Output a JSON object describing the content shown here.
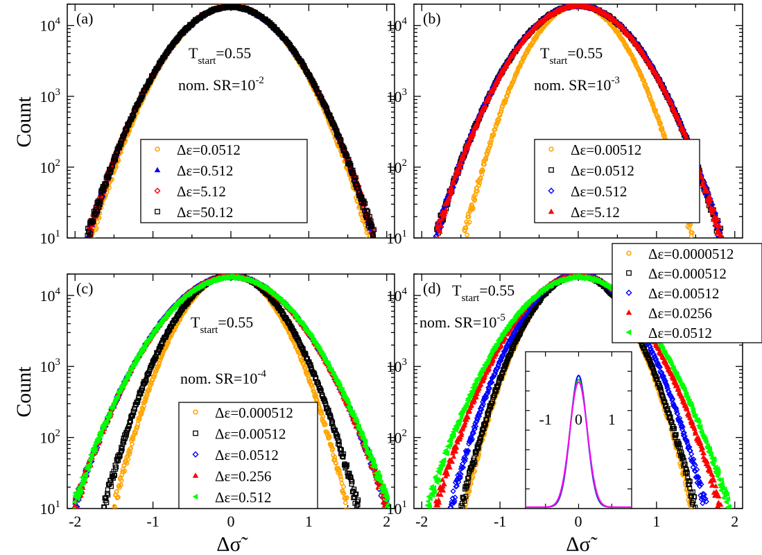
{
  "figure": {
    "ylabel": "Count",
    "xlabel": "Δσ̃"
  },
  "chart_data": [
    {
      "type": "scatter",
      "panel": "(a)",
      "annotation": {
        "T_label": "T",
        "T_sub": "start",
        "T_value": "=0.55",
        "SR_prefix": "nom. SR=10",
        "SR_exp": "-2"
      },
      "x_range": [
        -2.1,
        2.1
      ],
      "y_range": [
        10,
        20000
      ],
      "y_scale": "log",
      "xticks": [
        -2,
        -1,
        0,
        1,
        2
      ],
      "xtick_labels_shown": false,
      "yticks": [
        "10^1",
        "10^2",
        "10^3",
        "10^4"
      ],
      "legend_position": "center-right",
      "series": [
        {
          "name": "Δε=0.0512",
          "color": "#ffa500",
          "marker": "circle",
          "peak": 19000,
          "sigma": 0.46,
          "x_min": -1.85,
          "x_max": 1.88
        },
        {
          "name": "Δε=0.512",
          "color": "#0000ff",
          "marker": "triangle-up",
          "peak": 18500,
          "sigma": 0.475,
          "x_min": -1.88,
          "x_max": 1.95
        },
        {
          "name": "Δε=5.12",
          "color": "#ff0000",
          "marker": "diamond",
          "peak": 18500,
          "sigma": 0.475,
          "x_min": -1.88,
          "x_max": 1.95
        },
        {
          "name": "Δε=50.12",
          "color": "#000000",
          "marker": "square",
          "peak": 18500,
          "sigma": 0.475,
          "x_min": -1.92,
          "x_max": 1.95
        }
      ]
    },
    {
      "type": "scatter",
      "panel": "(b)",
      "annotation": {
        "T_label": "T",
        "T_sub": "start",
        "T_value": "=0.55",
        "SR_prefix": "nom. SR=10",
        "SR_exp": "-3"
      },
      "x_range": [
        -2.1,
        2.1
      ],
      "y_range": [
        10,
        20000
      ],
      "y_scale": "log",
      "xticks": [
        -2,
        -1,
        0,
        1,
        2
      ],
      "xtick_labels_shown": false,
      "yticks": [
        "10^1",
        "10^2",
        "10^3",
        "10^4"
      ],
      "legend_position": "center-right",
      "series": [
        {
          "name": "Δε=0.00512",
          "color": "#ffa500",
          "marker": "circle",
          "peak": 19500,
          "sigma": 0.375,
          "x_min": -1.62,
          "x_max": 1.65
        },
        {
          "name": "Δε=0.0512",
          "color": "#000000",
          "marker": "square",
          "peak": 19000,
          "sigma": 0.47,
          "x_min": -1.9,
          "x_max": 1.92
        },
        {
          "name": "Δε=0.512",
          "color": "#0000ff",
          "marker": "diamond",
          "peak": 19000,
          "sigma": 0.47,
          "x_min": -1.9,
          "x_max": 1.92
        },
        {
          "name": "Δε=5.12",
          "color": "#ff0000",
          "marker": "triangle-up",
          "peak": 19000,
          "sigma": 0.47,
          "x_min": -1.9,
          "x_max": 1.92
        }
      ]
    },
    {
      "type": "scatter",
      "panel": "(c)",
      "annotation": {
        "T_label": "T",
        "T_sub": "start",
        "T_value": "=0.55",
        "SR_prefix": "nom. SR=10",
        "SR_exp": "-4"
      },
      "x_range": [
        -2.1,
        2.1
      ],
      "y_range": [
        10,
        20000
      ],
      "y_scale": "log",
      "xticks": [
        -2,
        -1,
        0,
        1,
        2
      ],
      "xtick_labels": [
        "-2",
        "-1",
        "0",
        "1",
        "2"
      ],
      "yticks": [
        "10^1",
        "10^2",
        "10^3",
        "10^4"
      ],
      "legend_position": "lower-right",
      "series": [
        {
          "name": "Δε=0.000512",
          "color": "#ffa500",
          "marker": "circle",
          "peak": 20000,
          "sigma": 0.385,
          "x_min": -1.62,
          "x_max": 1.65
        },
        {
          "name": "Δε=0.00512",
          "color": "#000000",
          "marker": "square",
          "peak": 19500,
          "sigma": 0.42,
          "x_min": -1.78,
          "x_max": 1.72
        },
        {
          "name": "Δε=0.0512",
          "color": "#0000ff",
          "marker": "diamond",
          "peak": 18500,
          "sigma": 0.52,
          "x_min": -2.0,
          "x_max": 2.0
        },
        {
          "name": "Δε=0.256",
          "color": "#ff0000",
          "marker": "triangle-up",
          "peak": 18500,
          "sigma": 0.52,
          "x_min": -2.05,
          "x_max": 2.0
        },
        {
          "name": "Δε=0.512",
          "color": "#00ff00",
          "marker": "triangle-left",
          "peak": 18000,
          "sigma": 0.525,
          "x_min": -2.02,
          "x_max": 2.02
        }
      ]
    },
    {
      "type": "scatter",
      "panel": "(d)",
      "annotation": {
        "T_label": "T",
        "T_sub": "start",
        "T_value": "=0.55",
        "SR_prefix": "nom. SR=10",
        "SR_exp": "-5"
      },
      "x_range": [
        -2.1,
        2.1
      ],
      "y_range": [
        10,
        20000
      ],
      "y_scale": "log",
      "xticks": [
        -2,
        -1,
        0,
        1,
        2
      ],
      "xtick_labels": [
        "-2",
        "-1",
        "0",
        "1",
        "2"
      ],
      "yticks": [
        "10^1",
        "10^2",
        "10^3",
        "10^4"
      ],
      "legend_position": "top-right",
      "series": [
        {
          "name": "Δε=0.0000512",
          "color": "#ffa500",
          "marker": "circle",
          "peak": 20000,
          "sigma": 0.375,
          "x_min": -1.55,
          "x_max": 1.6
        },
        {
          "name": "Δε=0.000512",
          "color": "#000000",
          "marker": "square",
          "peak": 19500,
          "sigma": 0.385,
          "x_min": -1.6,
          "x_max": 1.65
        },
        {
          "name": "Δε=0.00512",
          "color": "#0000ff",
          "marker": "diamond",
          "peak": 20000,
          "sigma": 0.42,
          "x_min": -1.85,
          "x_max": 1.82
        },
        {
          "name": "Δε=0.0256",
          "color": "#ff0000",
          "marker": "triangle-up",
          "peak": 19000,
          "sigma": 0.47,
          "x_min": -2.0,
          "x_max": 1.98
        },
        {
          "name": "Δε=0.0512",
          "color": "#00ff00",
          "marker": "triangle-left",
          "peak": 18000,
          "sigma": 0.5,
          "x_min": -2.05,
          "x_max": 2.05
        }
      ],
      "inset": {
        "x_range": [
          -1.6,
          1.6
        ],
        "xticks": [
          -1,
          0,
          1
        ],
        "xtick_labels": [
          "-1",
          "0",
          "1"
        ],
        "curves": [
          {
            "color": "#0000ff",
            "peak": 1.0,
            "sigma": 0.25
          },
          {
            "color": "#00cc00",
            "peak": 0.97,
            "sigma": 0.26
          },
          {
            "color": "#ff00ff",
            "peak": 0.95,
            "sigma": 0.265
          }
        ]
      }
    }
  ]
}
